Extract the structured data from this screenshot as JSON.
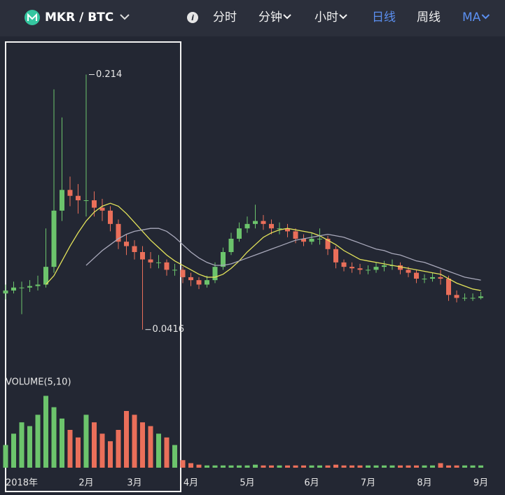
{
  "toolbar": {
    "pair": "MKR / BTC",
    "info": "i",
    "active_tab": 3,
    "tabs": [
      {
        "label": "分时",
        "dropdown": false
      },
      {
        "label": "分钟",
        "dropdown": true
      },
      {
        "label": "小时",
        "dropdown": true
      },
      {
        "label": "日线",
        "dropdown": false
      },
      {
        "label": "周线",
        "dropdown": false
      },
      {
        "label": "MA",
        "dropdown": true
      }
    ]
  },
  "chart_data": {
    "type": "candlestick",
    "categories": [
      null,
      null,
      "2018年",
      null,
      null,
      null,
      null,
      null,
      null,
      null,
      "2月",
      null,
      null,
      null,
      null,
      null,
      "3月",
      null,
      null,
      null,
      null,
      null,
      null,
      "4月",
      null,
      null,
      null,
      null,
      null,
      null,
      "5月",
      null,
      null,
      null,
      null,
      null,
      null,
      null,
      "6月",
      null,
      null,
      null,
      null,
      null,
      null,
      "7月",
      null,
      null,
      null,
      null,
      null,
      null,
      "8月",
      null,
      null,
      null,
      null,
      null,
      null,
      "9月"
    ],
    "open": [
      0.066,
      0.068,
      0.07,
      0.07,
      0.071,
      0.072,
      0.084,
      0.122,
      0.136,
      0.132,
      0.129,
      0.129,
      0.124,
      0.122,
      0.113,
      0.101,
      0.098,
      0.094,
      0.089,
      0.087,
      0.087,
      0.082,
      0.082,
      0.077,
      0.075,
      0.072,
      0.075,
      0.084,
      0.094,
      0.103,
      0.11,
      0.113,
      0.115,
      0.113,
      0.11,
      0.11,
      0.108,
      0.103,
      0.101,
      0.103,
      0.103,
      0.096,
      0.087,
      0.084,
      0.083,
      0.082,
      0.082,
      0.084,
      0.085,
      0.085,
      0.082,
      0.08,
      0.076,
      0.076,
      0.077,
      0.076,
      0.065,
      0.063,
      0.063,
      0.063
    ],
    "high": [
      0.072,
      0.074,
      0.074,
      0.075,
      0.078,
      0.11,
      0.204,
      0.185,
      0.145,
      0.14,
      0.214,
      0.135,
      0.13,
      0.125,
      0.116,
      0.106,
      0.102,
      0.098,
      0.094,
      0.092,
      0.089,
      0.086,
      0.084,
      0.08,
      0.077,
      0.078,
      0.087,
      0.097,
      0.107,
      0.114,
      0.118,
      0.126,
      0.119,
      0.116,
      0.114,
      0.113,
      0.11,
      0.106,
      0.107,
      0.11,
      0.105,
      0.098,
      0.089,
      0.087,
      0.086,
      0.085,
      0.087,
      0.088,
      0.089,
      0.087,
      0.084,
      0.082,
      0.079,
      0.08,
      0.082,
      0.078,
      0.068,
      0.066,
      0.066,
      0.067
    ],
    "low": [
      0.062,
      0.066,
      0.052,
      0.067,
      0.068,
      0.07,
      0.08,
      0.115,
      0.125,
      0.12,
      0.118,
      0.118,
      0.115,
      0.108,
      0.096,
      0.092,
      0.089,
      0.0416,
      0.083,
      0.083,
      0.078,
      0.078,
      0.073,
      0.071,
      0.069,
      0.07,
      0.073,
      0.082,
      0.092,
      0.101,
      0.107,
      0.11,
      0.109,
      0.106,
      0.106,
      0.104,
      0.1,
      0.098,
      0.099,
      0.099,
      0.092,
      0.083,
      0.081,
      0.08,
      0.079,
      0.079,
      0.08,
      0.081,
      0.082,
      0.079,
      0.077,
      0.073,
      0.073,
      0.074,
      0.072,
      0.061,
      0.06,
      0.061,
      0.061,
      0.062
    ],
    "close": [
      0.068,
      0.07,
      0.07,
      0.071,
      0.072,
      0.084,
      0.122,
      0.136,
      0.132,
      0.129,
      0.129,
      0.124,
      0.122,
      0.113,
      0.101,
      0.098,
      0.094,
      0.089,
      0.087,
      0.087,
      0.082,
      0.082,
      0.077,
      0.075,
      0.072,
      0.075,
      0.084,
      0.094,
      0.103,
      0.11,
      0.113,
      0.115,
      0.113,
      0.11,
      0.11,
      0.108,
      0.103,
      0.101,
      0.103,
      0.103,
      0.096,
      0.087,
      0.084,
      0.083,
      0.082,
      0.082,
      0.084,
      0.085,
      0.085,
      0.082,
      0.08,
      0.076,
      0.076,
      0.077,
      0.076,
      0.065,
      0.063,
      0.063,
      0.063,
      0.064
    ],
    "volume": [
      30,
      45,
      60,
      55,
      70,
      95,
      80,
      65,
      50,
      40,
      70,
      60,
      45,
      35,
      50,
      75,
      70,
      60,
      55,
      45,
      40,
      30,
      10,
      6,
      4,
      3,
      3,
      3,
      3,
      3,
      3,
      4,
      3,
      3,
      3,
      3,
      3,
      3,
      3,
      3,
      3,
      4,
      3,
      3,
      3,
      3,
      3,
      3,
      3,
      3,
      3,
      3,
      3,
      3,
      6,
      3,
      3,
      3,
      3,
      3
    ],
    "ma_lines": [
      {
        "color": "#e3e35a",
        "values": [
          null,
          null,
          null,
          null,
          null,
          0.072,
          0.078,
          0.088,
          0.098,
          0.107,
          0.115,
          0.121,
          0.125,
          0.127,
          0.125,
          0.12,
          0.114,
          0.108,
          0.102,
          0.097,
          0.092,
          0.088,
          0.085,
          0.082,
          0.079,
          0.077,
          0.077,
          0.079,
          0.083,
          0.088,
          0.094,
          0.099,
          0.104,
          0.107,
          0.109,
          0.11,
          0.109,
          0.108,
          0.107,
          0.105,
          0.102,
          0.099,
          0.095,
          0.092,
          0.089,
          0.088,
          0.087,
          0.086,
          0.085,
          0.084,
          0.083,
          0.082,
          0.081,
          0.08,
          0.079,
          0.076,
          0.073,
          0.071,
          0.069,
          0.068
        ]
      },
      {
        "color": "#a9a9bb",
        "values": [
          null,
          null,
          null,
          null,
          null,
          null,
          null,
          null,
          null,
          null,
          0.085,
          0.09,
          0.095,
          0.099,
          0.103,
          0.106,
          0.108,
          0.109,
          0.11,
          0.11,
          0.108,
          0.104,
          0.099,
          0.094,
          0.09,
          0.087,
          0.085,
          0.085,
          0.086,
          0.088,
          0.09,
          0.092,
          0.094,
          0.096,
          0.098,
          0.1,
          0.102,
          0.103,
          0.104,
          0.105,
          0.106,
          0.105,
          0.104,
          0.102,
          0.1,
          0.098,
          0.096,
          0.095,
          0.093,
          0.092,
          0.09,
          0.088,
          0.087,
          0.085,
          0.083,
          0.081,
          0.079,
          0.077,
          0.076,
          0.075
        ]
      }
    ],
    "up_color": "#6cc46c",
    "down_color": "#ea6f5a",
    "ylim": [
      0.023,
      0.236
    ],
    "volume_ylim": [
      0,
      100
    ],
    "volume_label": "VOLUME(5,10)"
  }
}
